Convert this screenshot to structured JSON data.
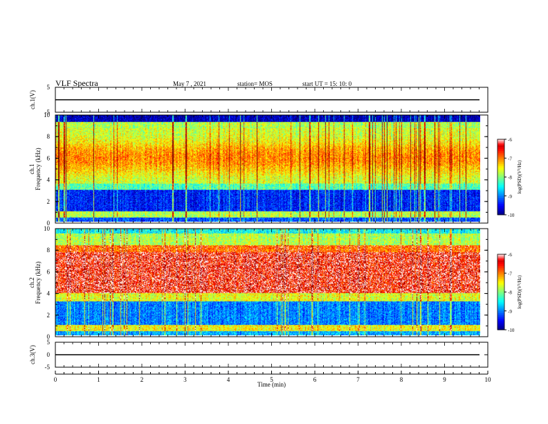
{
  "header": {
    "title": "VLF Spectra",
    "date": "May 7 , 2021",
    "station": "station= MOS",
    "start": "start  UT =   15: 10: 0"
  },
  "chart_data": [
    {
      "type": "line",
      "name": "ch1-waveform",
      "ylabel": "ch.1(V)",
      "y_ticks": [
        "5",
        "-5"
      ],
      "ylim": [
        -5,
        5
      ],
      "x": [
        0,
        10
      ],
      "values": [
        0,
        0
      ]
    },
    {
      "type": "heatmap",
      "name": "ch1-spectrogram",
      "ylabel_channel": "ch.1",
      "ylabel": "Frequency (kHz)",
      "y_ticks": [
        "0",
        "2",
        "4",
        "6",
        "8",
        "10"
      ],
      "ylim": [
        0,
        10
      ],
      "xlim": [
        0,
        9.85
      ],
      "colorbar": {
        "label": "log(PSD)(V²/Hz)",
        "ticks": [
          "-6",
          "-7",
          "-8",
          "-9",
          "-10"
        ],
        "range": [
          -10,
          -6
        ]
      }
    },
    {
      "type": "heatmap",
      "name": "ch2-spectrogram",
      "ylabel_channel": "ch.2",
      "ylabel": "Frequency (kHz)",
      "y_ticks": [
        "0",
        "2",
        "4",
        "6",
        "8",
        "10"
      ],
      "ylim": [
        0,
        10
      ],
      "xlim": [
        0,
        9.85
      ],
      "colorbar": {
        "label": "log(PSD)(V²/Hz)",
        "ticks": [
          "-6",
          "-7",
          "-8",
          "-9",
          "-10"
        ],
        "range": [
          -10,
          -6
        ]
      }
    },
    {
      "type": "line",
      "name": "ch3-waveform",
      "ylabel": "ch.3(V)",
      "y_ticks": [
        "5",
        "0",
        "-5"
      ],
      "ylim": [
        -5,
        5
      ],
      "x": [
        0,
        10
      ],
      "values": [
        0,
        0
      ]
    }
  ],
  "x_axis": {
    "label": "Time  (min)",
    "ticks": [
      "0",
      "1",
      "2",
      "3",
      "4",
      "5",
      "6",
      "7",
      "8",
      "9",
      "10"
    ],
    "range": [
      0,
      10
    ]
  }
}
